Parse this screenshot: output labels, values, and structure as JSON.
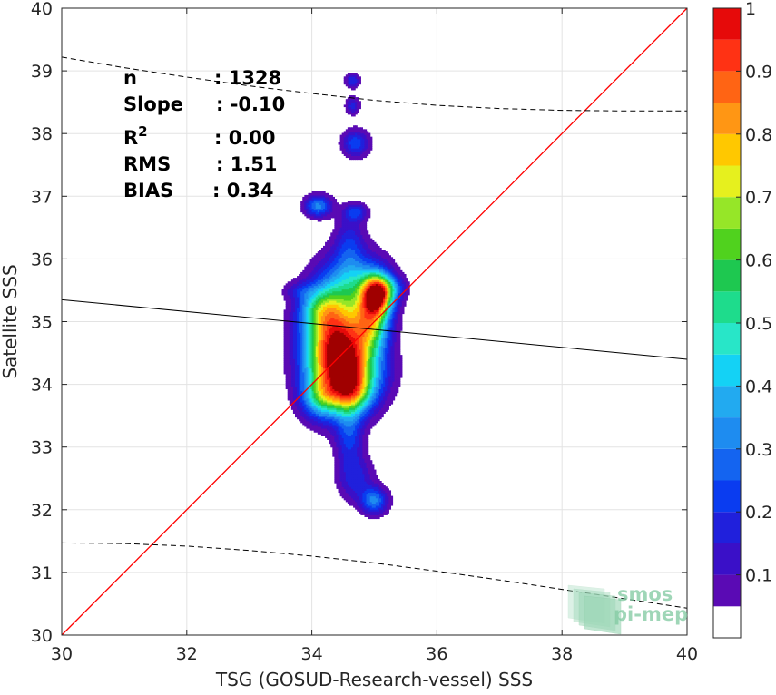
{
  "chart_data": {
    "type": "scatter",
    "subtype": "density-contour",
    "xlabel": "TSG (GOSUD-Research-vessel) SSS",
    "ylabel": "Satellite SSS",
    "xlim": [
      30,
      40
    ],
    "ylim": [
      30,
      40
    ],
    "xticks": [
      "30",
      "32",
      "34",
      "36",
      "38",
      "40"
    ],
    "yticks": [
      "30",
      "31",
      "32",
      "33",
      "34",
      "35",
      "36",
      "37",
      "38",
      "39",
      "40"
    ],
    "grid": true,
    "stats": [
      {
        "label": "n",
        "sep": ":",
        "value": "1328"
      },
      {
        "label": "Slope",
        "sep": ":",
        "value": "-0.10"
      },
      {
        "label": "R",
        "sup": "2",
        "sep": ":",
        "value": "0.00"
      },
      {
        "label": "RMS",
        "sep": ":",
        "value": "1.51"
      },
      {
        "label": "BIAS",
        "sep": ":",
        "value": "0.34"
      }
    ],
    "identity_line": {
      "x": [
        30,
        40
      ],
      "y": [
        30,
        40
      ],
      "color": "#ff0000"
    },
    "regression_line": {
      "x": [
        30,
        40
      ],
      "y": [
        35.35,
        34.4
      ],
      "color": "#000000"
    },
    "upper_envelope": {
      "x": [
        30,
        31,
        32,
        33,
        34,
        35,
        36,
        37,
        38,
        39,
        40
      ],
      "y": [
        39.22,
        39.05,
        38.9,
        38.76,
        38.64,
        38.53,
        38.45,
        38.4,
        38.37,
        38.36,
        38.36
      ],
      "style": "dashed"
    },
    "lower_envelope": {
      "x": [
        30,
        31,
        32,
        33,
        34,
        35,
        36,
        37,
        38,
        39,
        40
      ],
      "y": [
        31.47,
        31.46,
        31.42,
        31.35,
        31.26,
        31.15,
        31.02,
        30.88,
        30.73,
        30.58,
        30.43
      ],
      "style": "dashed"
    },
    "density_blobs": [
      {
        "cx": 34.4,
        "cy": 34.55,
        "sx": 0.35,
        "sy": 0.55,
        "a": 1.0
      },
      {
        "cx": 35.05,
        "cy": 35.45,
        "sx": 0.17,
        "sy": 0.22,
        "a": 0.88
      },
      {
        "cx": 34.95,
        "cy": 35.0,
        "sx": 0.2,
        "sy": 0.3,
        "a": 0.5
      },
      {
        "cx": 34.65,
        "cy": 35.65,
        "sx": 0.35,
        "sy": 0.35,
        "a": 0.32
      },
      {
        "cx": 34.15,
        "cy": 35.2,
        "sx": 0.25,
        "sy": 0.25,
        "a": 0.3
      },
      {
        "cx": 34.7,
        "cy": 34.2,
        "sx": 0.35,
        "sy": 0.35,
        "a": 0.35
      },
      {
        "cx": 34.15,
        "cy": 33.8,
        "sx": 0.22,
        "sy": 0.22,
        "a": 0.32
      },
      {
        "cx": 34.65,
        "cy": 33.85,
        "sx": 0.22,
        "sy": 0.22,
        "a": 0.35
      },
      {
        "cx": 34.6,
        "cy": 33.2,
        "sx": 0.15,
        "sy": 0.35,
        "a": 0.2
      },
      {
        "cx": 34.7,
        "cy": 32.5,
        "sx": 0.2,
        "sy": 0.25,
        "a": 0.17
      },
      {
        "cx": 35.0,
        "cy": 32.15,
        "sx": 0.15,
        "sy": 0.15,
        "a": 0.3
      },
      {
        "cx": 34.6,
        "cy": 36.3,
        "sx": 0.16,
        "sy": 0.3,
        "a": 0.15
      },
      {
        "cx": 34.1,
        "cy": 36.85,
        "sx": 0.15,
        "sy": 0.12,
        "a": 0.32
      },
      {
        "cx": 34.7,
        "cy": 36.75,
        "sx": 0.13,
        "sy": 0.1,
        "a": 0.2
      },
      {
        "cx": 34.7,
        "cy": 37.85,
        "sx": 0.15,
        "sy": 0.15,
        "a": 0.24
      },
      {
        "cx": 34.65,
        "cy": 38.85,
        "sx": 0.08,
        "sy": 0.08,
        "a": 0.2
      },
      {
        "cx": 34.65,
        "cy": 38.45,
        "sx": 0.08,
        "sy": 0.1,
        "a": 0.17
      },
      {
        "cx": 33.8,
        "cy": 35.5,
        "sx": 0.18,
        "sy": 0.1,
        "a": 0.1
      },
      {
        "cx": 35.3,
        "cy": 35.55,
        "sx": 0.15,
        "sy": 0.12,
        "a": 0.15
      }
    ],
    "colorbar": {
      "min": 0.05,
      "max": 1,
      "levels": [
        0.05,
        0.1,
        0.15,
        0.2,
        0.25,
        0.3,
        0.35,
        0.4,
        0.45,
        0.5,
        0.55,
        0.6,
        0.65,
        0.7,
        0.75,
        0.8,
        0.85,
        0.9,
        0.95,
        1.0
      ],
      "colors": [
        "#5a0ab4",
        "#3a10c8",
        "#2020dc",
        "#0a3cf0",
        "#1464f0",
        "#1e8cf0",
        "#22aaf0",
        "#14d2f5",
        "#28e6c8",
        "#1edc8c",
        "#1ec850",
        "#50d21e",
        "#96e628",
        "#e6f01e",
        "#ffc800",
        "#ff9614",
        "#ff6414",
        "#ff3214",
        "#e60a0a",
        "#a00000"
      ],
      "tick_labels": [
        "0.1",
        "0.2",
        "0.3",
        "0.4",
        "0.5",
        "0.6",
        "0.7",
        "0.8",
        "0.9",
        "1"
      ],
      "tick_values": [
        0.1,
        0.2,
        0.3,
        0.4,
        0.5,
        0.6,
        0.7,
        0.8,
        0.9,
        1.0
      ]
    },
    "watermark": {
      "line1": "smos",
      "line2": "pi-mep"
    }
  }
}
